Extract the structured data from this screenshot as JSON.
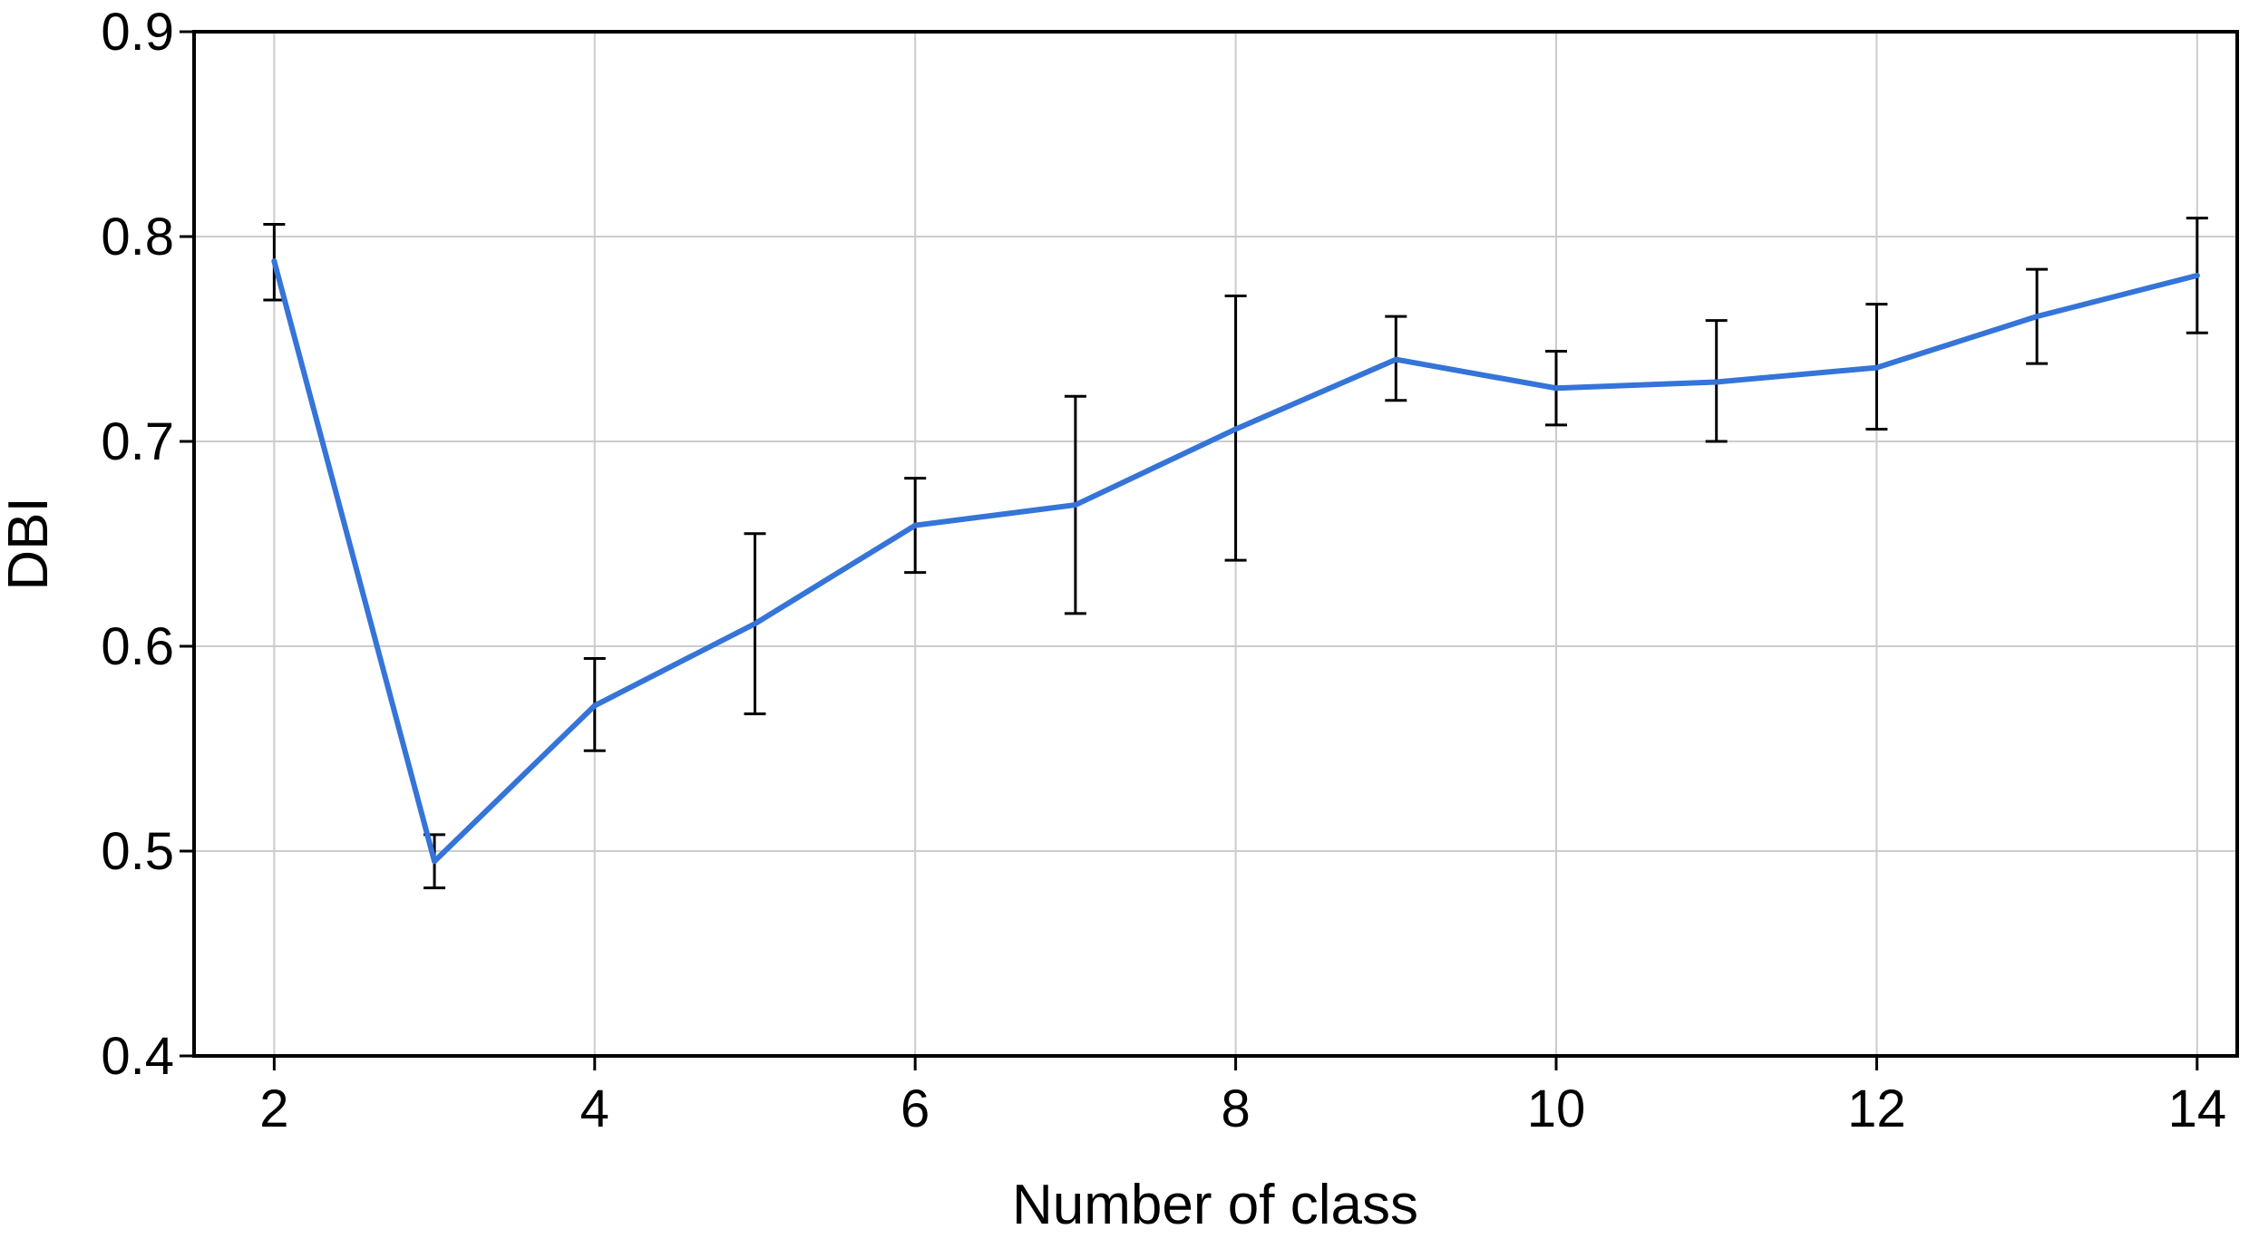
{
  "chart_data": {
    "type": "line",
    "title": "",
    "xlabel": "Number of class",
    "ylabel": "DBI",
    "xlim": [
      1.5,
      14.25
    ],
    "ylim": [
      0.4,
      0.9
    ],
    "grid": true,
    "x_ticks": [
      2,
      4,
      6,
      8,
      10,
      12,
      14
    ],
    "y_ticks": [
      0.4,
      0.5,
      0.6,
      0.7,
      0.8,
      0.9
    ],
    "series": [
      {
        "color": "#3574d8",
        "x": [
          2,
          3,
          4,
          5,
          6,
          7,
          8,
          9,
          10,
          11,
          12,
          13,
          14
        ],
        "y": [
          0.788,
          0.495,
          0.571,
          0.611,
          0.659,
          0.669,
          0.706,
          0.74,
          0.726,
          0.729,
          0.736,
          0.761,
          0.781
        ],
        "error_low": [
          0.769,
          0.482,
          0.549,
          0.567,
          0.636,
          0.616,
          0.642,
          0.72,
          0.708,
          0.7,
          0.706,
          0.738,
          0.753
        ],
        "error_high": [
          0.806,
          0.508,
          0.594,
          0.655,
          0.682,
          0.722,
          0.771,
          0.761,
          0.744,
          0.759,
          0.767,
          0.784,
          0.809
        ]
      }
    ]
  }
}
